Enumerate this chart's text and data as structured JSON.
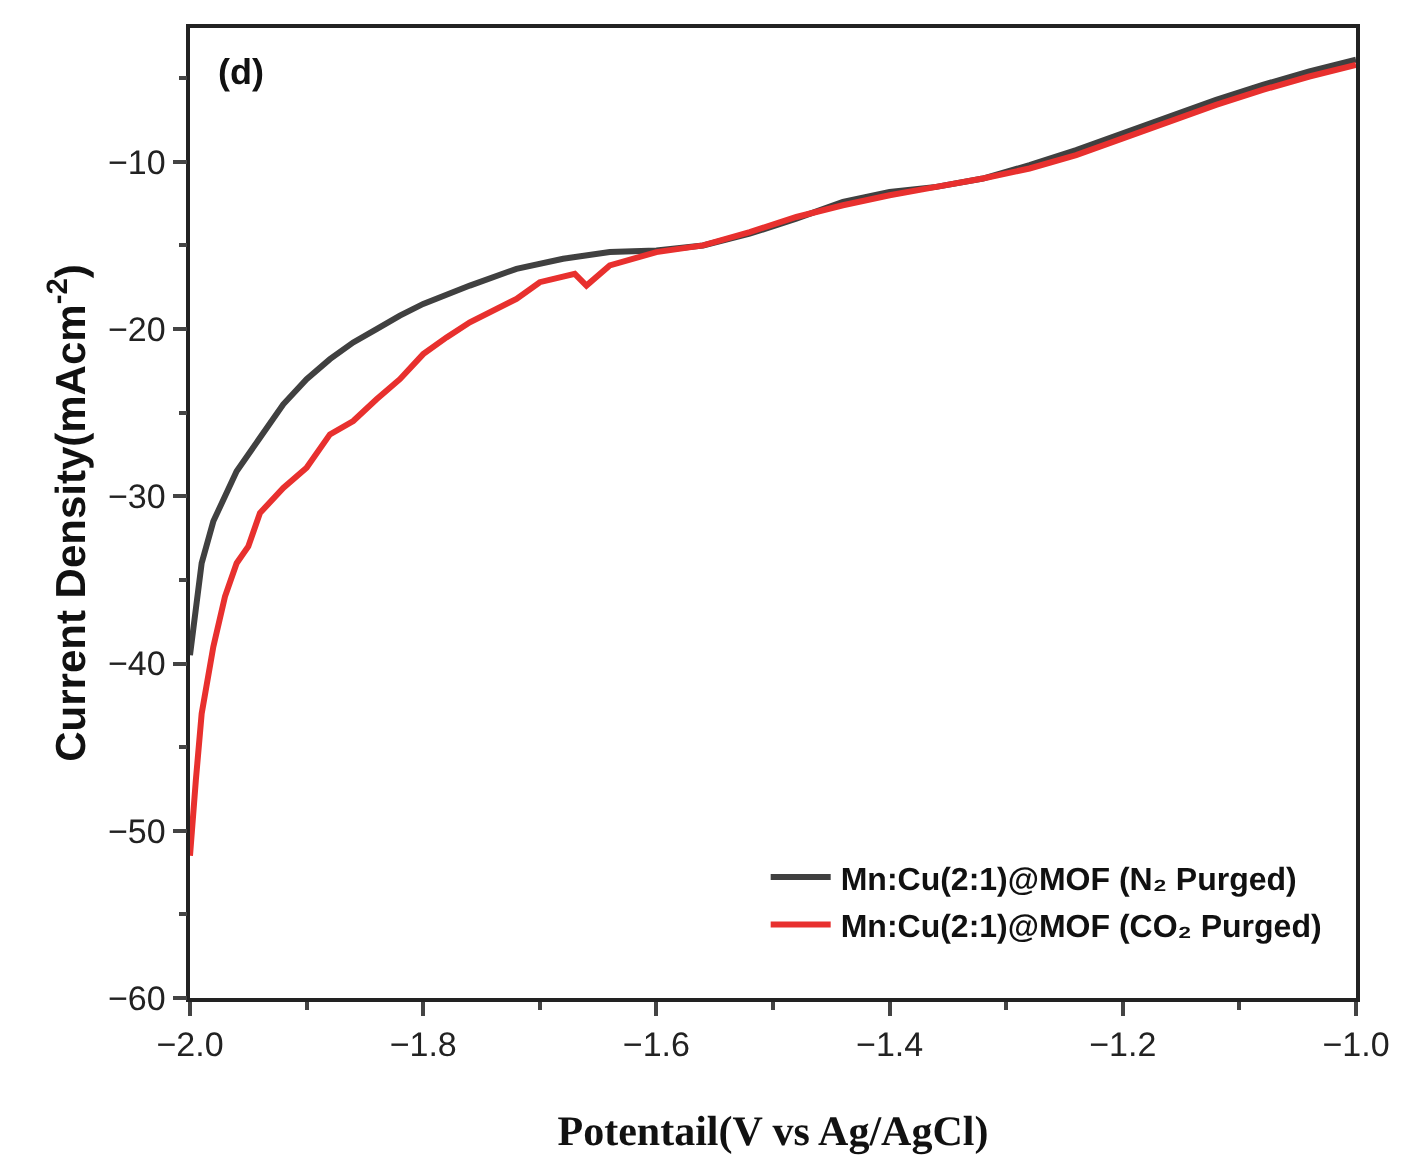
{
  "chart_data": {
    "type": "line",
    "xlabel": "Potentail(V vs Ag/AgCl)",
    "ylabel": "Current Density(mAcm$^{-2}$)",
    "annotations": [
      "(d)"
    ],
    "xlim": [
      -2.0,
      -1.0
    ],
    "ylim": [
      -60,
      -2
    ],
    "xticks": [
      {
        "value": -2.0,
        "label": "−2.0"
      },
      {
        "value": -1.9,
        "label": null
      },
      -1.8,
      {
        "value": -1.7,
        "label": null
      },
      -1.6,
      {
        "value": -1.5,
        "label": null
      },
      -1.4,
      {
        "value": -1.3,
        "label": null
      },
      -1.2,
      {
        "value": -1.1,
        "label": null
      },
      {
        "value": -1.0,
        "label": "−1.0"
      }
    ],
    "yticks": [
      -60,
      {
        "value": -55,
        "label": null
      },
      -50,
      {
        "value": -45,
        "label": null
      },
      -40,
      {
        "value": -35,
        "label": null
      },
      -30,
      {
        "value": -25,
        "label": null
      },
      -20,
      {
        "value": -15,
        "label": null
      },
      -10,
      {
        "value": -5,
        "label": null
      }
    ],
    "grid": false,
    "legend": "bottom right",
    "marker": "none",
    "line_style": "solid",
    "series": [
      {
        "name": "Mn:Cu(2:1)@MOF (N₂ Purged)",
        "color": "#404040",
        "x": [
          -2.0,
          -1.99,
          -1.98,
          -1.96,
          -1.94,
          -1.92,
          -1.9,
          -1.88,
          -1.86,
          -1.84,
          -1.82,
          -1.8,
          -1.76,
          -1.72,
          -1.68,
          -1.64,
          -1.6,
          -1.56,
          -1.52,
          -1.48,
          -1.44,
          -1.4,
          -1.36,
          -1.32,
          -1.28,
          -1.24,
          -1.2,
          -1.16,
          -1.12,
          -1.08,
          -1.04,
          -1.0
        ],
        "values": [
          -39.5,
          -34,
          -31.5,
          -28.5,
          -26.5,
          -24.5,
          -23,
          -21.8,
          -20.8,
          -20,
          -19.2,
          -18.5,
          -17.4,
          -16.4,
          -15.8,
          -15.4,
          -15.3,
          -15,
          -14.3,
          -13.4,
          -12.4,
          -11.8,
          -11.5,
          -11,
          -10.2,
          -9.3,
          -8.3,
          -7.3,
          -6.3,
          -5.4,
          -4.6,
          -3.9
        ]
      },
      {
        "name": "Mn:Cu(2:1)@MOF (CO₂ Purged)",
        "color": "#e8302e",
        "x": [
          -2.0,
          -1.995,
          -1.99,
          -1.98,
          -1.97,
          -1.96,
          -1.95,
          -1.94,
          -1.92,
          -1.9,
          -1.88,
          -1.86,
          -1.84,
          -1.82,
          -1.8,
          -1.78,
          -1.76,
          -1.72,
          -1.7,
          -1.67,
          -1.66,
          -1.64,
          -1.6,
          -1.56,
          -1.52,
          -1.48,
          -1.44,
          -1.4,
          -1.36,
          -1.32,
          -1.28,
          -1.24,
          -1.2,
          -1.16,
          -1.12,
          -1.08,
          -1.04,
          -1.0
        ],
        "values": [
          -51.5,
          -47,
          -43,
          -39,
          -36,
          -34,
          -33,
          -31,
          -29.5,
          -28.3,
          -26.3,
          -25.5,
          -24.2,
          -23,
          -21.5,
          -20.5,
          -19.6,
          -18.2,
          -17.2,
          -16.7,
          -17.4,
          -16.2,
          -15.4,
          -15,
          -14.2,
          -13.3,
          -12.6,
          -12,
          -11.5,
          -11,
          -10.4,
          -9.6,
          -8.6,
          -7.6,
          -6.6,
          -5.7,
          -4.9,
          -4.2
        ]
      }
    ]
  }
}
